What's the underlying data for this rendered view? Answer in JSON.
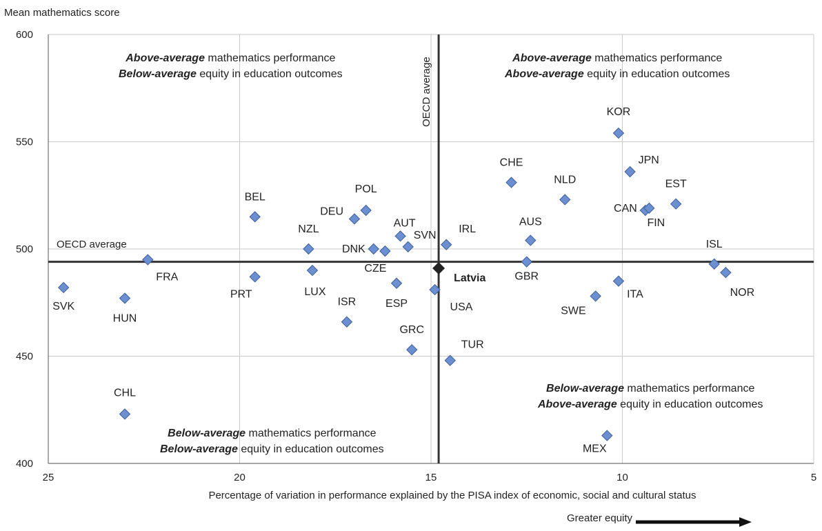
{
  "chart_data": {
    "type": "scatter",
    "ylabel": "Mean mathematics score",
    "xlabel": "Percentage of variation in performance explained by the PISA index of economic, social and cultural status",
    "xlim": [
      25,
      5
    ],
    "x_reversed": true,
    "ylim": [
      400,
      600
    ],
    "xticks": [
      "25",
      "20",
      "15",
      "10",
      "5"
    ],
    "xtick_values": [
      25,
      20,
      15,
      10,
      5
    ],
    "yticks": [
      "600",
      "550",
      "500",
      "450",
      "400"
    ],
    "ytick_values": [
      600,
      550,
      500,
      450,
      400
    ],
    "grid": true,
    "oecd_average": {
      "x": 14.8,
      "y": 494,
      "label_h": "OECD average",
      "label_v": "OECD average"
    },
    "equity_note": "Greater equity",
    "highlight": {
      "label": "Latvia",
      "x": 14.8,
      "y": 491
    },
    "points": [
      {
        "label": "KOR",
        "x": 10.1,
        "y": 554
      },
      {
        "label": "JPN",
        "x": 9.8,
        "y": 536
      },
      {
        "label": "CHE",
        "x": 12.9,
        "y": 531
      },
      {
        "label": "NLD",
        "x": 11.5,
        "y": 523
      },
      {
        "label": "EST",
        "x": 8.6,
        "y": 521
      },
      {
        "label": "CAN",
        "x": 9.4,
        "y": 518
      },
      {
        "label": "FIN",
        "x": 9.3,
        "y": 519
      },
      {
        "label": "BEL",
        "x": 19.6,
        "y": 515
      },
      {
        "label": "POL",
        "x": 16.7,
        "y": 518
      },
      {
        "label": "DEU",
        "x": 17.0,
        "y": 514
      },
      {
        "label": "AUT",
        "x": 15.8,
        "y": 506
      },
      {
        "label": "SVN",
        "x": 15.6,
        "y": 501
      },
      {
        "label": "IRL",
        "x": 14.6,
        "y": 502
      },
      {
        "label": "AUS",
        "x": 12.4,
        "y": 504
      },
      {
        "label": "NZL",
        "x": 18.2,
        "y": 500
      },
      {
        "label": "DNK",
        "x": 16.5,
        "y": 500
      },
      {
        "label": "CZE",
        "x": 16.2,
        "y": 499
      },
      {
        "label": "ISL",
        "x": 7.6,
        "y": 493
      },
      {
        "label": "NOR",
        "x": 7.3,
        "y": 489
      },
      {
        "label": "FRA",
        "x": 22.4,
        "y": 495
      },
      {
        "label": "GBR",
        "x": 12.5,
        "y": 494
      },
      {
        "label": "LUX",
        "x": 18.1,
        "y": 490
      },
      {
        "label": "PRT",
        "x": 19.6,
        "y": 487
      },
      {
        "label": "ITA",
        "x": 10.1,
        "y": 485
      },
      {
        "label": "ESP",
        "x": 15.9,
        "y": 484
      },
      {
        "label": "USA",
        "x": 14.9,
        "y": 481
      },
      {
        "label": "SVK",
        "x": 24.6,
        "y": 482
      },
      {
        "label": "SWE",
        "x": 10.7,
        "y": 478
      },
      {
        "label": "HUN",
        "x": 23.0,
        "y": 477
      },
      {
        "label": "ISR",
        "x": 17.2,
        "y": 466
      },
      {
        "label": "GRC",
        "x": 15.5,
        "y": 453
      },
      {
        "label": "TUR",
        "x": 14.5,
        "y": 448
      },
      {
        "label": "CHL",
        "x": 23.0,
        "y": 423
      },
      {
        "label": "MEX",
        "x": 10.4,
        "y": 413
      }
    ],
    "quadrants": {
      "top_left": {
        "line1_bold": "Above-average",
        "line1_rest": " mathematics performance",
        "line2_bold": "Below-average",
        "line2_rest": " equity in education outcomes"
      },
      "top_right": {
        "line1_bold": "Above-average",
        "line1_rest": " mathematics performance",
        "line2_bold": "Above-average",
        "line2_rest": " equity in education outcomes"
      },
      "bottom_right": {
        "line1_bold": "Below-average",
        "line1_rest": " mathematics performance",
        "line2_bold": "Above-average",
        "line2_rest": " equity in education outcomes"
      },
      "bottom_left": {
        "line1_bold": "Below-average",
        "line1_rest": " mathematics performance",
        "line2_bold": "Below-average",
        "line2_rest": " equity in education outcomes"
      }
    },
    "colors": {
      "marker": "#6b8fd0",
      "marker_stroke": "#3f5f9a",
      "highlight": "#222222",
      "avg_line": "#333333",
      "grid": "#c9c9c9"
    }
  }
}
